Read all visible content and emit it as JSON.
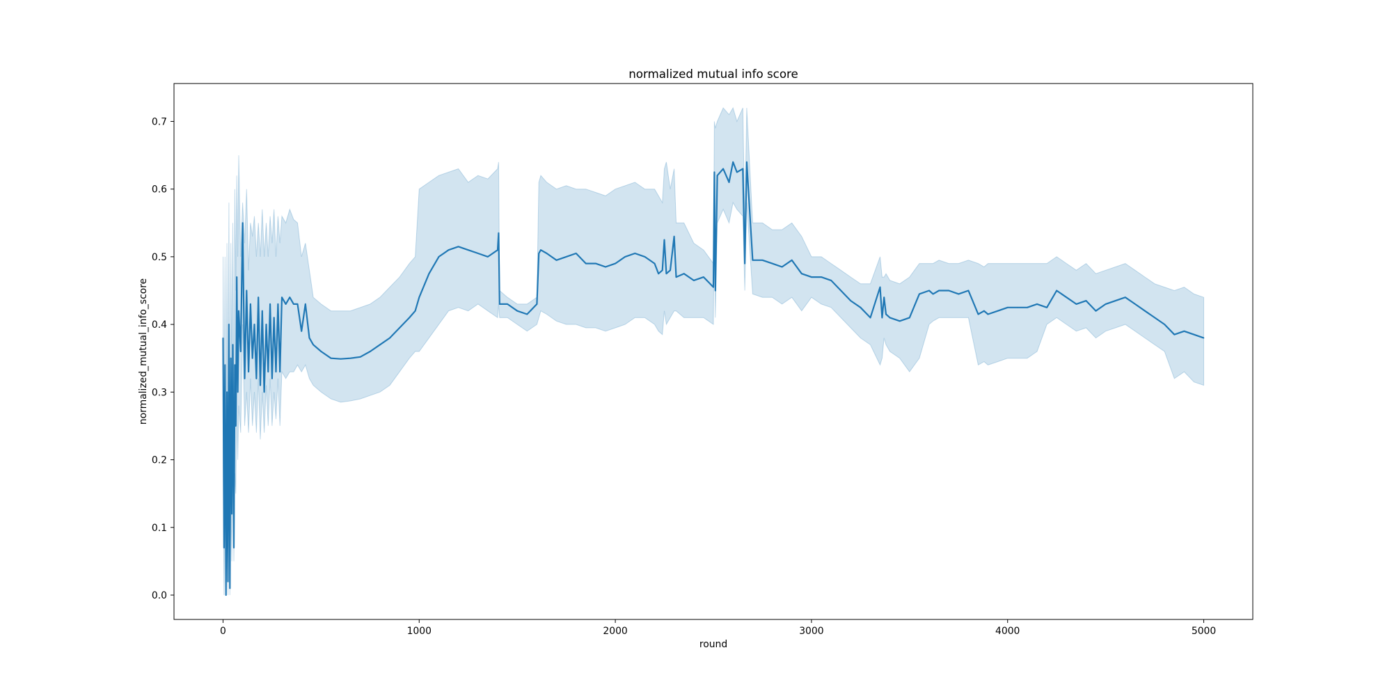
{
  "chart_data": {
    "type": "line",
    "title": "normalized mutual info score",
    "xlabel": "round",
    "ylabel": "normalized_mutual_info_score",
    "xlim": [
      -250,
      5250
    ],
    "ylim": [
      -0.036,
      0.756
    ],
    "xticks": [
      0,
      1000,
      2000,
      3000,
      4000,
      5000
    ],
    "xtick_labels": [
      "0",
      "1000",
      "2000",
      "3000",
      "4000",
      "5000"
    ],
    "yticks": [
      0.0,
      0.1,
      0.2,
      0.3,
      0.4,
      0.5,
      0.6,
      0.7
    ],
    "ytick_labels": [
      "0.0",
      "0.1",
      "0.2",
      "0.3",
      "0.4",
      "0.5",
      "0.6",
      "0.7"
    ],
    "grid": false,
    "legend": "none",
    "colors": {
      "line": "#1f77b4",
      "band": "#1f77b4",
      "band_opacity": 0.2
    },
    "series": [
      {
        "x": [
          0,
          5,
          10,
          15,
          20,
          25,
          30,
          35,
          40,
          45,
          50,
          55,
          60,
          65,
          70,
          75,
          80,
          90,
          100,
          110,
          120,
          130,
          140,
          150,
          160,
          170,
          180,
          190,
          200,
          210,
          220,
          230,
          240,
          250,
          260,
          270,
          280,
          290,
          300,
          320,
          340,
          360,
          380,
          400,
          420,
          440,
          460,
          500,
          550,
          600,
          650,
          700,
          750,
          800,
          850,
          900,
          950,
          980,
          1000,
          1050,
          1100,
          1150,
          1200,
          1250,
          1300,
          1350,
          1400,
          1405,
          1410,
          1450,
          1500,
          1550,
          1600,
          1610,
          1620,
          1650,
          1700,
          1750,
          1800,
          1850,
          1900,
          1950,
          2000,
          2050,
          2100,
          2150,
          2200,
          2220,
          2240,
          2250,
          2260,
          2280,
          2300,
          2310,
          2350,
          2400,
          2450,
          2500,
          2505,
          2510,
          2520,
          2550,
          2580,
          2600,
          2620,
          2650,
          2660,
          2670,
          2700,
          2750,
          2800,
          2850,
          2900,
          2950,
          3000,
          3050,
          3100,
          3150,
          3200,
          3250,
          3300,
          3350,
          3360,
          3370,
          3380,
          3400,
          3450,
          3500,
          3550,
          3600,
          3620,
          3650,
          3700,
          3750,
          3800,
          3850,
          3880,
          3900,
          3950,
          4000,
          4050,
          4100,
          4150,
          4200,
          4250,
          4300,
          4350,
          4400,
          4450,
          4500,
          4550,
          4600,
          4650,
          4700,
          4750,
          4800,
          4850,
          4900,
          4950,
          5000
        ],
        "y": [
          0.38,
          0.07,
          0.34,
          0.0,
          0.3,
          0.02,
          0.4,
          0.01,
          0.35,
          0.12,
          0.37,
          0.07,
          0.34,
          0.25,
          0.47,
          0.3,
          0.42,
          0.36,
          0.55,
          0.32,
          0.45,
          0.33,
          0.43,
          0.35,
          0.4,
          0.32,
          0.44,
          0.31,
          0.42,
          0.3,
          0.4,
          0.33,
          0.43,
          0.32,
          0.41,
          0.33,
          0.43,
          0.33,
          0.44,
          0.43,
          0.44,
          0.43,
          0.43,
          0.39,
          0.43,
          0.38,
          0.37,
          0.36,
          0.35,
          0.349,
          0.35,
          0.352,
          0.36,
          0.37,
          0.38,
          0.395,
          0.41,
          0.42,
          0.44,
          0.475,
          0.5,
          0.51,
          0.515,
          0.51,
          0.505,
          0.5,
          0.51,
          0.535,
          0.43,
          0.43,
          0.42,
          0.415,
          0.43,
          0.505,
          0.51,
          0.505,
          0.495,
          0.5,
          0.505,
          0.49,
          0.49,
          0.485,
          0.49,
          0.5,
          0.505,
          0.5,
          0.49,
          0.475,
          0.48,
          0.525,
          0.475,
          0.48,
          0.53,
          0.47,
          0.475,
          0.465,
          0.47,
          0.455,
          0.625,
          0.45,
          0.62,
          0.63,
          0.61,
          0.64,
          0.625,
          0.63,
          0.49,
          0.64,
          0.495,
          0.495,
          0.49,
          0.485,
          0.495,
          0.475,
          0.47,
          0.47,
          0.465,
          0.45,
          0.435,
          0.425,
          0.41,
          0.455,
          0.41,
          0.44,
          0.415,
          0.41,
          0.405,
          0.41,
          0.445,
          0.45,
          0.445,
          0.45,
          0.45,
          0.445,
          0.45,
          0.415,
          0.42,
          0.415,
          0.42,
          0.425,
          0.425,
          0.425,
          0.43,
          0.425,
          0.45,
          0.44,
          0.43,
          0.435,
          0.42,
          0.43,
          0.435,
          0.44,
          0.43,
          0.42,
          0.41,
          0.4,
          0.385,
          0.39,
          0.385,
          0.38
        ],
        "upper": [
          0.5,
          0.2,
          0.5,
          0.15,
          0.52,
          0.2,
          0.58,
          0.15,
          0.52,
          0.3,
          0.55,
          0.25,
          0.6,
          0.45,
          0.62,
          0.5,
          0.65,
          0.5,
          0.58,
          0.52,
          0.6,
          0.48,
          0.55,
          0.53,
          0.56,
          0.5,
          0.55,
          0.5,
          0.57,
          0.5,
          0.55,
          0.5,
          0.56,
          0.52,
          0.57,
          0.5,
          0.56,
          0.52,
          0.56,
          0.55,
          0.57,
          0.555,
          0.55,
          0.5,
          0.52,
          0.48,
          0.44,
          0.43,
          0.42,
          0.42,
          0.42,
          0.425,
          0.43,
          0.44,
          0.455,
          0.47,
          0.49,
          0.5,
          0.6,
          0.61,
          0.62,
          0.625,
          0.63,
          0.61,
          0.62,
          0.615,
          0.63,
          0.64,
          0.45,
          0.44,
          0.43,
          0.43,
          0.44,
          0.61,
          0.62,
          0.61,
          0.6,
          0.605,
          0.6,
          0.6,
          0.595,
          0.59,
          0.6,
          0.605,
          0.61,
          0.6,
          0.6,
          0.59,
          0.58,
          0.63,
          0.64,
          0.6,
          0.63,
          0.55,
          0.55,
          0.52,
          0.51,
          0.49,
          0.7,
          0.69,
          0.7,
          0.72,
          0.71,
          0.72,
          0.7,
          0.72,
          0.55,
          0.72,
          0.55,
          0.55,
          0.54,
          0.54,
          0.55,
          0.53,
          0.5,
          0.5,
          0.49,
          0.48,
          0.47,
          0.46,
          0.46,
          0.5,
          0.47,
          0.47,
          0.475,
          0.465,
          0.46,
          0.47,
          0.49,
          0.49,
          0.49,
          0.495,
          0.49,
          0.49,
          0.495,
          0.49,
          0.485,
          0.49,
          0.49,
          0.49,
          0.49,
          0.49,
          0.49,
          0.49,
          0.5,
          0.49,
          0.48,
          0.49,
          0.475,
          0.48,
          0.485,
          0.49,
          0.48,
          0.47,
          0.46,
          0.455,
          0.45,
          0.455,
          0.445,
          0.44
        ],
        "lower": [
          0.2,
          0.0,
          0.15,
          0.0,
          0.1,
          0.0,
          0.2,
          0.0,
          0.15,
          0.05,
          0.2,
          0.05,
          0.18,
          0.15,
          0.3,
          0.2,
          0.28,
          0.24,
          0.4,
          0.25,
          0.3,
          0.24,
          0.32,
          0.25,
          0.3,
          0.24,
          0.32,
          0.23,
          0.3,
          0.24,
          0.31,
          0.25,
          0.32,
          0.25,
          0.3,
          0.26,
          0.32,
          0.25,
          0.33,
          0.32,
          0.33,
          0.33,
          0.34,
          0.33,
          0.34,
          0.32,
          0.31,
          0.3,
          0.29,
          0.285,
          0.287,
          0.29,
          0.295,
          0.3,
          0.31,
          0.33,
          0.35,
          0.36,
          0.36,
          0.38,
          0.4,
          0.42,
          0.425,
          0.42,
          0.43,
          0.42,
          0.41,
          0.43,
          0.41,
          0.41,
          0.4,
          0.39,
          0.4,
          0.41,
          0.42,
          0.415,
          0.405,
          0.4,
          0.4,
          0.395,
          0.395,
          0.39,
          0.395,
          0.4,
          0.41,
          0.41,
          0.4,
          0.39,
          0.385,
          0.42,
          0.4,
          0.41,
          0.42,
          0.42,
          0.41,
          0.41,
          0.41,
          0.4,
          0.56,
          0.41,
          0.55,
          0.57,
          0.55,
          0.58,
          0.57,
          0.56,
          0.45,
          0.58,
          0.445,
          0.44,
          0.44,
          0.43,
          0.44,
          0.42,
          0.44,
          0.43,
          0.425,
          0.41,
          0.395,
          0.38,
          0.37,
          0.34,
          0.35,
          0.38,
          0.37,
          0.36,
          0.35,
          0.33,
          0.35,
          0.4,
          0.405,
          0.41,
          0.41,
          0.41,
          0.41,
          0.34,
          0.345,
          0.34,
          0.345,
          0.35,
          0.35,
          0.35,
          0.36,
          0.4,
          0.41,
          0.4,
          0.39,
          0.395,
          0.38,
          0.39,
          0.395,
          0.4,
          0.39,
          0.38,
          0.37,
          0.36,
          0.32,
          0.33,
          0.315,
          0.31
        ]
      }
    ]
  }
}
